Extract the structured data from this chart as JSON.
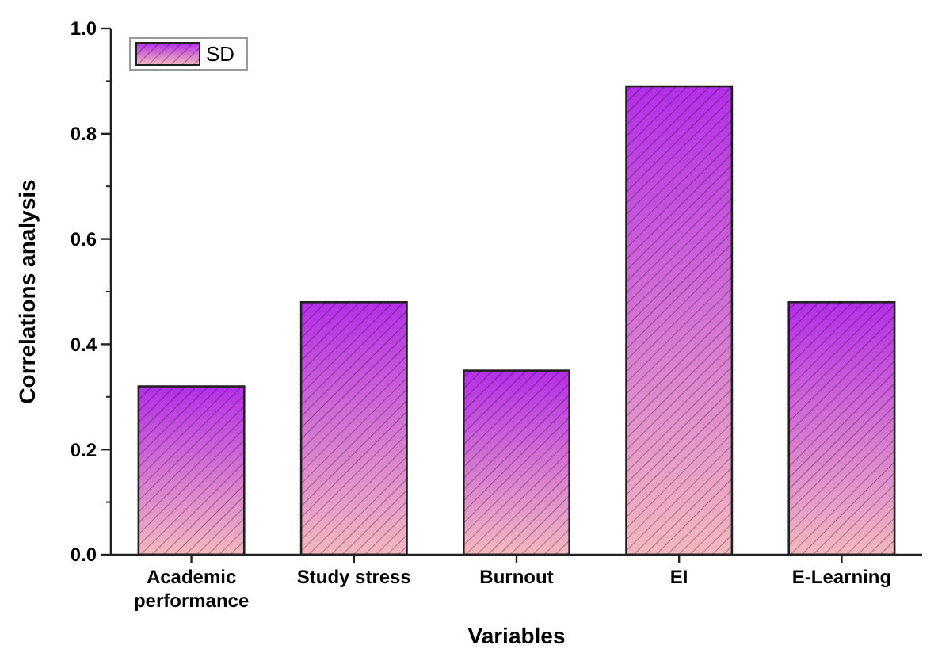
{
  "chart_data": {
    "type": "bar",
    "xlabel": "Variables",
    "ylabel": "Correlations analysis",
    "categories": [
      "Academic performance",
      "Study stress",
      "Burnout",
      "EI",
      "E-Learning"
    ],
    "series": [
      {
        "name": "SD",
        "color": "#b42ee8",
        "values": [
          0.32,
          0.48,
          0.35,
          0.89,
          0.48
        ]
      }
    ],
    "ylim": [
      0,
      1.0
    ],
    "yticks": [
      {
        "value": 0,
        "label": "0.0"
      },
      {
        "value": 0.2,
        "label": "0.2"
      },
      {
        "value": 0.4,
        "label": "0.4"
      },
      {
        "value": 0.6,
        "label": "0.6"
      },
      {
        "value": 0.8,
        "label": "0.8"
      },
      {
        "value": 1.0,
        "label": "1.0"
      }
    ],
    "legend": "top left",
    "grid": false
  }
}
